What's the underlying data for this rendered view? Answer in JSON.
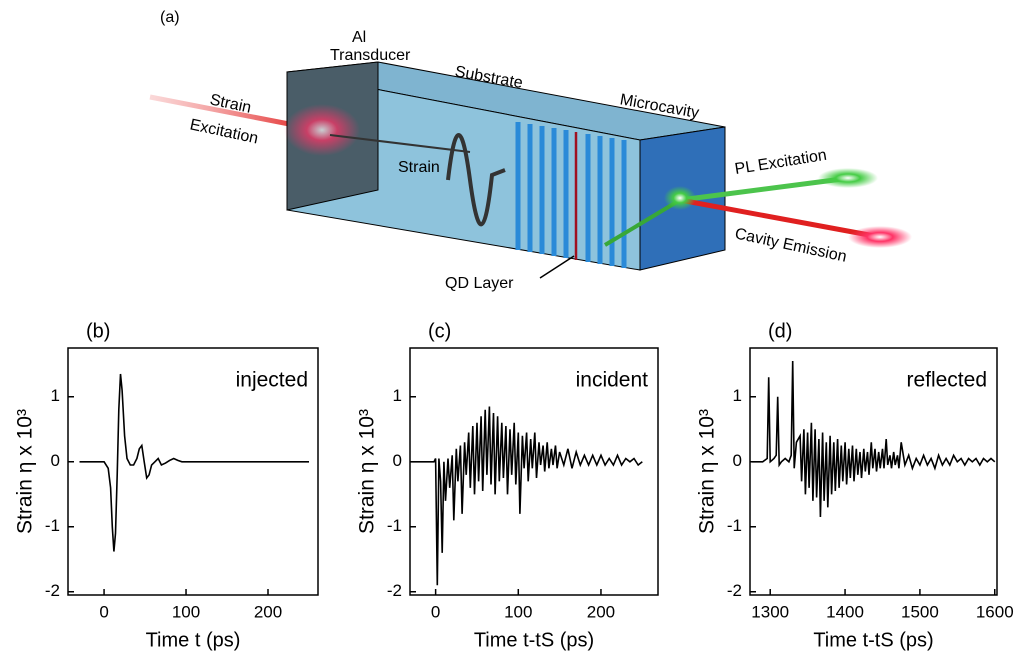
{
  "diagram": {
    "panel": "(a)",
    "transducer": [
      "Al",
      "Transducer"
    ],
    "substrate": "Substrate",
    "microcavity": "Microcavity",
    "strain_excitation": [
      "Strain",
      "Excitation"
    ],
    "strain": "Strain",
    "pl_excitation": "PL Excitation",
    "cavity_emission": "Cavity Emission",
    "qd_layer": "QD Layer"
  },
  "chart_data": [
    {
      "type": "line",
      "panel": "(b)",
      "annotation": "injected",
      "ylabel": "Strain η x 10³",
      "xlabel": "Time t (ps)",
      "color": "#000000",
      "xlim": [
        -44,
        261
      ],
      "ylim": [
        -2.05,
        1.75
      ],
      "xticks": [
        0,
        100,
        200
      ],
      "yticks": [
        -2,
        -1,
        0,
        1
      ],
      "x": [
        -30,
        0,
        5,
        8,
        10,
        12,
        14,
        16,
        18,
        20,
        22,
        25,
        28,
        32,
        36,
        40,
        43,
        46,
        49,
        52,
        55,
        58,
        62,
        66,
        70,
        75,
        80,
        85,
        90,
        95,
        100,
        150,
        200,
        250
      ],
      "values": [
        0,
        0,
        -0.1,
        -0.4,
        -1.0,
        -1.38,
        -1.1,
        -0.2,
        0.8,
        1.35,
        1.1,
        0.4,
        0.05,
        -0.05,
        -0.05,
        0.05,
        0.2,
        0.25,
        0.0,
        -0.25,
        -0.2,
        -0.05,
        0.0,
        0.05,
        -0.05,
        -0.02,
        0.02,
        0.05,
        0.02,
        0,
        0,
        0,
        0,
        0
      ]
    },
    {
      "type": "line",
      "panel": "(c)",
      "annotation": "incident",
      "ylabel": "Strain η x 10³",
      "xlabel": "Time t-tS (ps)",
      "color": "#000000",
      "xlim": [
        -31,
        269
      ],
      "ylim": [
        -2.05,
        1.75
      ],
      "xticks": [
        0,
        100,
        200
      ],
      "yticks": [
        -2,
        -1,
        0,
        1
      ],
      "x": [
        -30,
        -10,
        -2,
        0,
        2,
        4,
        6,
        8,
        10,
        12,
        15,
        17,
        20,
        22,
        25,
        27,
        30,
        32,
        35,
        37,
        40,
        42,
        45,
        47,
        50,
        52,
        55,
        57,
        60,
        62,
        65,
        67,
        70,
        72,
        75,
        77,
        80,
        82,
        85,
        87,
        90,
        92,
        95,
        97,
        100,
        102,
        105,
        107,
        110,
        112,
        115,
        117,
        120,
        122,
        125,
        127,
        130,
        132,
        135,
        137,
        140,
        142,
        145,
        147,
        150,
        155,
        160,
        165,
        170,
        175,
        180,
        185,
        190,
        195,
        200,
        205,
        210,
        215,
        220,
        225,
        230,
        235,
        240,
        245,
        250
      ],
      "values": [
        0,
        0,
        0,
        0.05,
        -1.9,
        0.05,
        -0.3,
        -1.4,
        0,
        -0.6,
        0.05,
        -0.4,
        0.1,
        -0.9,
        0.2,
        -0.3,
        0.25,
        -0.8,
        0.3,
        -0.2,
        0.45,
        -0.4,
        0.55,
        -0.5,
        0.6,
        -0.3,
        0.7,
        -0.45,
        0.8,
        -0.2,
        0.85,
        -0.35,
        0.75,
        -0.5,
        0.7,
        -0.3,
        0.6,
        -0.25,
        0.55,
        -0.5,
        0.5,
        -0.2,
        0.6,
        -0.35,
        0.45,
        -0.8,
        0.4,
        -0.1,
        0.45,
        -0.3,
        0.35,
        -0.1,
        0.45,
        -0.25,
        0.3,
        -0.05,
        0.25,
        -0.15,
        0.3,
        -0.1,
        0.2,
        -0.05,
        0.25,
        -0.1,
        0.15,
        -0.05,
        0.2,
        -0.1,
        0.15,
        -0.05,
        0.1,
        -0.05,
        0.1,
        -0.05,
        0.1,
        -0.05,
        0.05,
        -0.05,
        0.1,
        -0.05,
        0.05,
        0.0,
        0.05,
        -0.05,
        0.0
      ]
    },
    {
      "type": "line",
      "panel": "(d)",
      "annotation": "reflected",
      "ylabel": "Strain η x 10³",
      "xlabel": "Time t-tS (ps)",
      "color": "#000000",
      "xlim": [
        1273,
        1603
      ],
      "ylim": [
        -2.05,
        1.75
      ],
      "xticks": [
        1300,
        1400,
        1500,
        1600
      ],
      "yticks": [
        -2,
        -1,
        0,
        1
      ],
      "x": [
        1275,
        1290,
        1296,
        1298,
        1300,
        1305,
        1308,
        1310,
        1312,
        1315,
        1320,
        1325,
        1328,
        1330,
        1332,
        1335,
        1340,
        1342,
        1345,
        1347,
        1350,
        1352,
        1355,
        1357,
        1360,
        1362,
        1365,
        1367,
        1370,
        1372,
        1375,
        1377,
        1380,
        1382,
        1385,
        1387,
        1390,
        1392,
        1395,
        1397,
        1400,
        1402,
        1405,
        1407,
        1410,
        1412,
        1415,
        1417,
        1420,
        1422,
        1425,
        1427,
        1430,
        1432,
        1435,
        1437,
        1440,
        1442,
        1445,
        1447,
        1450,
        1452,
        1455,
        1457,
        1460,
        1462,
        1465,
        1467,
        1470,
        1472,
        1475,
        1480,
        1485,
        1490,
        1495,
        1500,
        1505,
        1510,
        1515,
        1520,
        1525,
        1530,
        1535,
        1540,
        1545,
        1550,
        1555,
        1560,
        1565,
        1570,
        1575,
        1580,
        1585,
        1590,
        1595,
        1600
      ],
      "values": [
        0,
        0,
        0.05,
        1.3,
        0,
        0.05,
        0.1,
        1.0,
        -0.05,
        0.0,
        0.05,
        0.0,
        0.1,
        1.55,
        -0.1,
        0.3,
        0.4,
        -0.3,
        0.5,
        -0.5,
        0.45,
        -0.4,
        0.6,
        -0.6,
        0.5,
        -0.55,
        0.35,
        -0.85,
        0.45,
        -0.6,
        0.3,
        -0.7,
        0.4,
        -0.5,
        0.3,
        -0.45,
        0.35,
        -0.4,
        0.25,
        -0.3,
        0.3,
        -0.35,
        0.2,
        -0.25,
        0.25,
        -0.3,
        0.2,
        -0.2,
        0.15,
        -0.25,
        0.2,
        -0.15,
        0.15,
        -0.2,
        0.3,
        -0.1,
        0.2,
        -0.15,
        0.15,
        -0.1,
        0.2,
        -0.1,
        0.35,
        -0.05,
        0.1,
        -0.1,
        0.15,
        -0.05,
        0.1,
        -0.1,
        0.3,
        -0.05,
        0.1,
        -0.1,
        0.05,
        -0.05,
        0.1,
        -0.05,
        0.05,
        -0.1,
        0.1,
        -0.05,
        0.05,
        -0.05,
        0.1,
        0.0,
        0.05,
        -0.05,
        0.05,
        0.0,
        0.05,
        -0.05,
        0.05,
        0.0,
        0.05,
        0.0
      ]
    }
  ]
}
